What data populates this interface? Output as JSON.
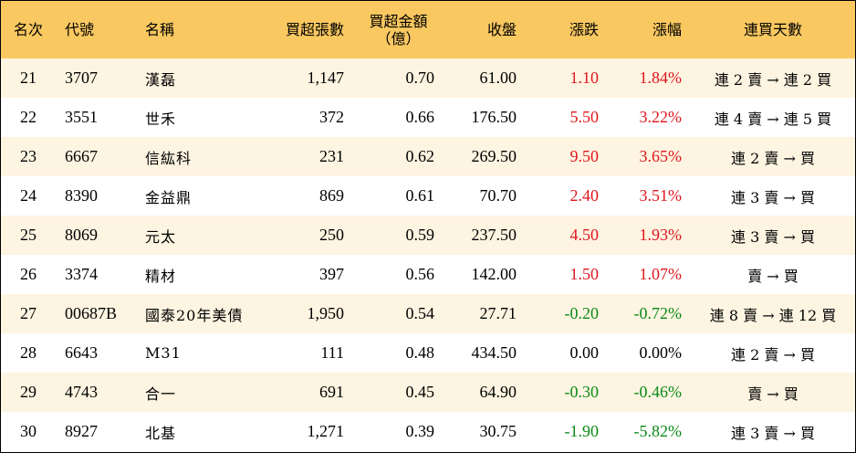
{
  "table": {
    "headers": [
      "名次",
      "代號",
      "名稱",
      "買超張數",
      [
        "買超金額",
        "（億）"
      ],
      "收盤",
      "漲跌",
      "漲幅",
      "連買天數"
    ],
    "rows": [
      [
        "21",
        "3707",
        "漢磊",
        "1,147",
        "0.70",
        "61.00",
        "1.10",
        "1.84%",
        "連 2 賣 → 連 2 買"
      ],
      [
        "22",
        "3551",
        "世禾",
        "372",
        "0.66",
        "176.50",
        "5.50",
        "3.22%",
        "連 4 賣 → 連 5 買"
      ],
      [
        "23",
        "6667",
        "信紘科",
        "231",
        "0.62",
        "269.50",
        "9.50",
        "3.65%",
        "連 2 賣 → 買"
      ],
      [
        "24",
        "8390",
        "金益鼎",
        "869",
        "0.61",
        "70.70",
        "2.40",
        "3.51%",
        "連 3 賣 → 買"
      ],
      [
        "25",
        "8069",
        "元太",
        "250",
        "0.59",
        "237.50",
        "4.50",
        "1.93%",
        "連 3 賣 → 買"
      ],
      [
        "26",
        "3374",
        "精材",
        "397",
        "0.56",
        "142.00",
        "1.50",
        "1.07%",
        "賣 → 買"
      ],
      [
        "27",
        "00687B",
        "國泰20年美債",
        "1,950",
        "0.54",
        "27.71",
        "-0.20",
        "-0.72%",
        "連 8 賣 → 連 12 買"
      ],
      [
        "28",
        "6643",
        "M31",
        "111",
        "0.48",
        "434.50",
        "0.00",
        "0.00%",
        "連 2 賣 → 買"
      ],
      [
        "29",
        "4743",
        "合一",
        "691",
        "0.45",
        "64.90",
        "-0.30",
        "-0.46%",
        "賣 → 買"
      ],
      [
        "30",
        "8927",
        "北基",
        "1,271",
        "0.39",
        "30.75",
        "-1.90",
        "-5.82%",
        "連 3 賣 → 買"
      ]
    ]
  }
}
